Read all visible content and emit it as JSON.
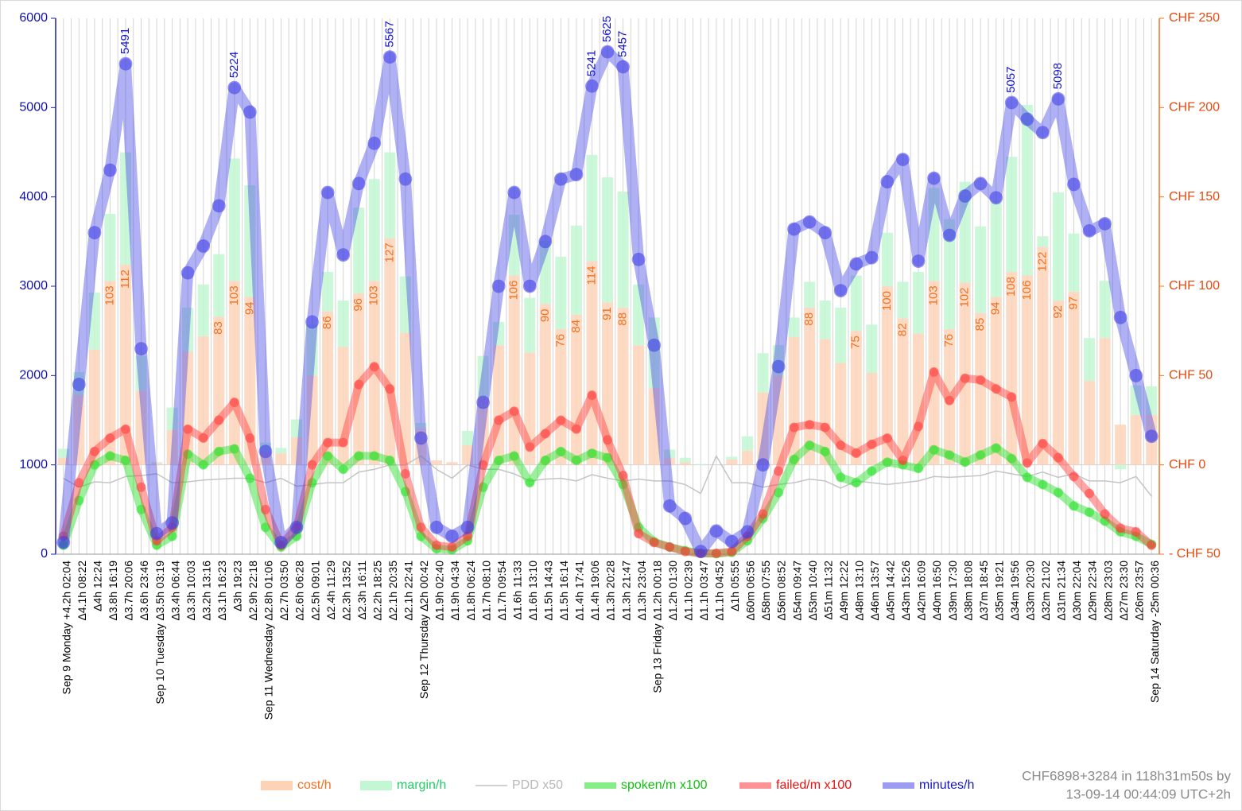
{
  "chart_data": {
    "type": "combo",
    "categories": [
      "Sep 9 Monday +4.2h 02:04",
      "Δ4.1h 08:22",
      "Δ4h 12:24",
      "Δ3.8h 16:19",
      "Δ3.7h 20:06",
      "Δ3.6h 23:46",
      "Sep 10 Tuesday Δ3.5h 03:19",
      "Δ3.4h 06:44",
      "Δ3.3h 10:03",
      "Δ3.2h 13:16",
      "Δ3.1h 16:23",
      "Δ3h 19:23",
      "Δ2.9h 22:18",
      "Sep 11 Wednesday Δ2.8h 01:06",
      "Δ2.7h 03:50",
      "Δ2.6h 06:28",
      "Δ2.5h 09:01",
      "Δ2.4h 11:29",
      "Δ2.3h 13:52",
      "Δ2.3h 16:11",
      "Δ2.2h 18:25",
      "Δ2.1h 20:35",
      "Δ2.1h 22:41",
      "Sep 12 Thursday Δ2h 00:42",
      "Δ1.9h 02:40",
      "Δ1.9h 04:34",
      "Δ1.8h 06:24",
      "Δ1.7h 08:10",
      "Δ1.7h 09:54",
      "Δ1.6h 11:33",
      "Δ1.6h 13:10",
      "Δ1.5h 14:43",
      "Δ1.5h 16:14",
      "Δ1.4h 17:41",
      "Δ1.4h 19:06",
      "Δ1.3h 20:28",
      "Δ1.3h 21:47",
      "Δ1.3h 23:04",
      "Sep 13 Friday Δ1.2h 00:18",
      "Δ1.2h 01:30",
      "Δ1.1h 02:39",
      "Δ1.1h 03:47",
      "Δ1.1h 04:52",
      "Δ1h 05:55",
      "Δ60m 06:56",
      "Δ58m 07:55",
      "Δ56m 08:52",
      "Δ54m 09:47",
      "Δ53m 10:40",
      "Δ51m 11:32",
      "Δ49m 12:22",
      "Δ48m 13:10",
      "Δ46m 13:57",
      "Δ45m 14:42",
      "Δ43m 15:26",
      "Δ42m 16:09",
      "Δ40m 16:50",
      "Δ39m 17:30",
      "Δ38m 18:08",
      "Δ37m 18:45",
      "Δ35m 19:21",
      "Δ34m 19:56",
      "Δ33m 20:30",
      "Δ32m 21:02",
      "Δ31m 21:34",
      "Δ30m 22:04",
      "Δ29m 22:34",
      "Δ28m 23:03",
      "Δ27m 23:30",
      "Δ26m 23:57",
      "Sep 14 Saturday -25m 00:36"
    ],
    "series": [
      {
        "name": "cost/h",
        "type": "bar",
        "axis": "y2",
        "color": "#fdd3b8",
        "text_color": "#f07020",
        "values": [
          4,
          39,
          64.5,
          103,
          112,
          41.5,
          1,
          19.5,
          63.5,
          72,
          83,
          103,
          94,
          7.5,
          6.5,
          15.5,
          50,
          86,
          66,
          96,
          103,
          127,
          74,
          20.5,
          2.5,
          1.5,
          11,
          38,
          67,
          106,
          63,
          90,
          76,
          84,
          114,
          91,
          88,
          67,
          43,
          4,
          1.5,
          0,
          0,
          3,
          8,
          40.5,
          50,
          71.5,
          88,
          70.5,
          57,
          75,
          51.5,
          100,
          82,
          73.5,
          103,
          76,
          102,
          85,
          94,
          108,
          106,
          122,
          92,
          97,
          47,
          71,
          22.5,
          28,
          28
        ],
        "labels": [
          null,
          null,
          null,
          103,
          112,
          null,
          null,
          null,
          null,
          null,
          83,
          103,
          94,
          null,
          null,
          null,
          null,
          86,
          null,
          96,
          103,
          127,
          null,
          null,
          null,
          null,
          null,
          null,
          null,
          106,
          null,
          90,
          76,
          84,
          114,
          91,
          88,
          null,
          null,
          null,
          null,
          null,
          null,
          null,
          null,
          null,
          null,
          null,
          88,
          null,
          null,
          75,
          null,
          100,
          82,
          null,
          103,
          76,
          102,
          85,
          94,
          108,
          106,
          122,
          92,
          97,
          null,
          null,
          null,
          null,
          null
        ]
      },
      {
        "name": "margin/h",
        "type": "bar",
        "axis": "y2",
        "color": "#c3f7d4",
        "text_color": "#22cc66",
        "values": [
          5,
          13,
          32,
          37.5,
          63,
          19.5,
          0.5,
          12.5,
          24.5,
          29,
          35,
          68.5,
          62.5,
          5,
          3,
          10,
          28.5,
          22,
          26,
          48,
          57,
          48,
          31.5,
          3,
          0,
          0,
          8,
          23,
          13,
          34,
          30.5,
          35.5,
          40.5,
          50,
          59.5,
          70,
          65,
          34,
          39.5,
          4.5,
          2.5,
          0.5,
          0,
          1.5,
          8,
          22,
          17,
          11,
          14.5,
          21.5,
          31,
          31,
          27,
          30,
          20.5,
          34.5,
          52,
          61.5,
          56.5,
          48.5,
          53,
          64.5,
          95.5,
          6,
          60.5,
          32.5,
          24,
          32,
          -2.5,
          16.5,
          16
        ]
      },
      {
        "name": "PDD x50",
        "type": "line",
        "axis": "y",
        "color": "#c4c4c4",
        "text_color": "#b8b8b8",
        "values": [
          850,
          750,
          810,
          800,
          870,
          880,
          900,
          800,
          810,
          830,
          840,
          850,
          850,
          800,
          850,
          760,
          780,
          800,
          800,
          920,
          950,
          1000,
          1000,
          1100,
          950,
          850,
          1000,
          950,
          950,
          900,
          820,
          840,
          850,
          820,
          890,
          850,
          820,
          840,
          820,
          820,
          780,
          680,
          1100,
          800,
          800,
          750,
          780,
          800,
          840,
          820,
          740,
          820,
          800,
          780,
          800,
          820,
          870,
          860,
          870,
          880,
          930,
          900,
          870,
          920,
          860,
          900,
          820,
          820,
          800,
          870,
          650
        ]
      },
      {
        "name": "spoken/m x100",
        "type": "line",
        "axis": "y",
        "color": "#22e022",
        "text_color": "#10c010",
        "values": [
          100,
          600,
          1000,
          1100,
          1050,
          500,
          100,
          200,
          1120,
          1000,
          1150,
          1180,
          850,
          300,
          80,
          200,
          800,
          1100,
          950,
          1100,
          1100,
          1050,
          700,
          200,
          60,
          50,
          150,
          750,
          1050,
          1100,
          800,
          1050,
          1150,
          1050,
          1130,
          1080,
          780,
          300,
          140,
          80,
          40,
          10,
          5,
          20,
          150,
          400,
          690,
          1060,
          1220,
          1150,
          860,
          800,
          930,
          1030,
          1000,
          960,
          1170,
          1110,
          1030,
          1110,
          1190,
          1070,
          860,
          780,
          690,
          540,
          470,
          370,
          250,
          200,
          110
        ]
      },
      {
        "name": "failed/m x100",
        "type": "line",
        "axis": "y",
        "color": "#ff3a3a",
        "text_color": "#ee1010",
        "values": [
          200,
          800,
          1150,
          1300,
          1400,
          750,
          150,
          300,
          1400,
          1300,
          1500,
          1700,
          1300,
          500,
          100,
          300,
          1000,
          1250,
          1250,
          1900,
          2100,
          1850,
          900,
          300,
          100,
          80,
          200,
          1000,
          1500,
          1600,
          1200,
          1350,
          1500,
          1400,
          1780,
          1280,
          880,
          230,
          130,
          80,
          30,
          10,
          10,
          30,
          200,
          450,
          930,
          1420,
          1450,
          1420,
          1220,
          1130,
          1230,
          1300,
          1050,
          1430,
          2040,
          1720,
          1970,
          1950,
          1850,
          1760,
          1020,
          1240,
          1080,
          870,
          680,
          450,
          290,
          250,
          100
        ]
      },
      {
        "name": "minutes/h",
        "type": "line",
        "axis": "y",
        "color": "#3a3ae6",
        "text_color": "#1515d0",
        "values": [
          130,
          1900,
          3600,
          4300,
          5491,
          2300,
          230,
          350,
          3150,
          3450,
          3900,
          5224,
          4950,
          1150,
          130,
          300,
          2600,
          4050,
          3350,
          4150,
          4600,
          5567,
          4200,
          1300,
          300,
          200,
          300,
          1700,
          3000,
          4050,
          3000,
          3500,
          4200,
          4250,
          5241,
          5625,
          5457,
          3300,
          2340,
          540,
          400,
          30,
          260,
          140,
          250,
          1000,
          2100,
          3640,
          3720,
          3600,
          2950,
          3250,
          3320,
          4170,
          4420,
          3280,
          4210,
          3570,
          4010,
          4150,
          3990,
          5057,
          4870,
          4720,
          5098,
          4140,
          3620,
          3700,
          2650,
          2000,
          1320
        ],
        "labels": [
          null,
          null,
          null,
          null,
          5491,
          null,
          null,
          null,
          null,
          null,
          null,
          5224,
          null,
          null,
          null,
          null,
          null,
          null,
          null,
          null,
          null,
          5567,
          null,
          null,
          null,
          null,
          null,
          null,
          null,
          null,
          null,
          null,
          null,
          null,
          5241,
          5625,
          5457,
          null,
          null,
          null,
          null,
          null,
          null,
          null,
          null,
          null,
          null,
          null,
          null,
          null,
          null,
          null,
          null,
          null,
          null,
          null,
          null,
          null,
          null,
          null,
          null,
          5057,
          null,
          null,
          5098,
          null,
          null,
          null,
          null,
          null,
          null
        ]
      }
    ],
    "ylim": [
      0,
      6000
    ],
    "yticks": [
      0,
      1000,
      2000,
      3000,
      4000,
      5000,
      6000
    ],
    "y2lim": [
      -50,
      250
    ],
    "y2ticks": [
      {
        "value": -50,
        "label": "- CHF 50"
      },
      {
        "value": 0,
        "label": "CHF 0"
      },
      {
        "value": 50,
        "label": "CHF 50"
      },
      {
        "value": 100,
        "label": "CHF 100"
      },
      {
        "value": 150,
        "label": "CHF 150"
      },
      {
        "value": 200,
        "label": "CHF 200"
      },
      {
        "value": 250,
        "label": "CHF 250"
      }
    ],
    "x_grid": true,
    "legend": "bottom",
    "footer": [
      "CHF6898+3284 in 118h31m50s by",
      "13-09-14 00:44:09 UTC+2h"
    ]
  }
}
